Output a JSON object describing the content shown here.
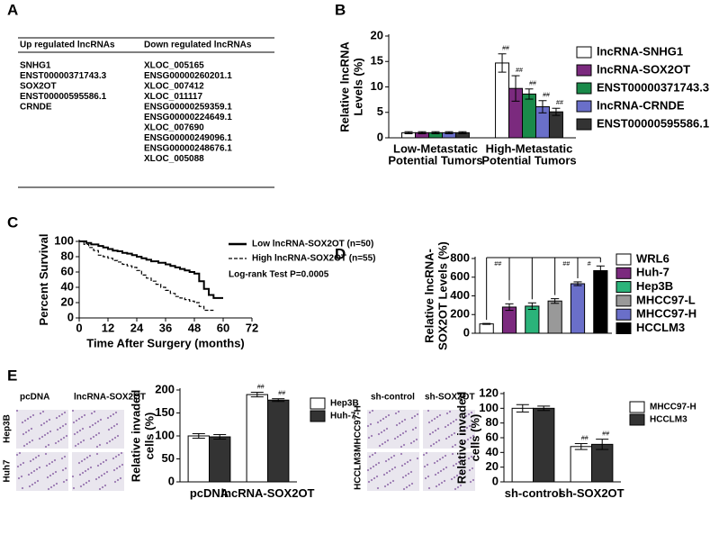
{
  "panels": [
    "A",
    "B",
    "C",
    "D",
    "E"
  ],
  "table": {
    "headers": [
      "Up regulated lncRNAs",
      "Down regulated lncRNAs"
    ],
    "columns": [
      [
        "SNHG1",
        "ENST00000371743.3",
        "SOX2OT",
        "ENST00000595586.1",
        "CRNDE"
      ],
      [
        "XLOC_005165",
        "ENSG00000260201.1",
        "XLOC_007412",
        "XLOC_011117",
        "ENSG00000259359.1",
        "ENSG00000224649.1",
        "XLOC_007690",
        "ENSG00000249096.1",
        "ENSG00000248676.1",
        "XLOC_005088"
      ]
    ]
  },
  "images": [
    {
      "columns": [
        "pcDNA",
        "lncRNA-SOX2OT"
      ],
      "rows": [
        "Hep3B",
        "Huh7"
      ]
    },
    {
      "columns": [
        "sh-control",
        "sh-SOX2OT"
      ],
      "rows": [
        "MHCC97-H",
        "HCCLM3"
      ]
    }
  ],
  "chart_data": [
    {
      "type": "bar",
      "ylabel": "Relative lncRNA\nLevels (%)",
      "categories": [
        "Low-Metastatic\nPotential Tumors",
        "High-Metastatic\nPotential Tumors"
      ],
      "series": [
        {
          "name": "lncRNA-SNHG1",
          "color": "#ffffff",
          "values": [
            1.0,
            14.7
          ],
          "errors": [
            0.2,
            1.8
          ],
          "marks": [
            null,
            "##"
          ]
        },
        {
          "name": "lncRNA-SOX2OT",
          "color": "#7b2a7e",
          "values": [
            1.0,
            9.7
          ],
          "errors": [
            0.2,
            2.5
          ],
          "marks": [
            null,
            "##"
          ]
        },
        {
          "name": "ENST00000371743.3",
          "color": "#1a8a4a",
          "values": [
            1.0,
            8.6
          ],
          "errors": [
            0.2,
            1.0
          ],
          "marks": [
            null,
            "##"
          ]
        },
        {
          "name": "lncRNA-CRNDE",
          "color": "#6a6fc9",
          "values": [
            1.0,
            6.1
          ],
          "errors": [
            0.2,
            1.2
          ],
          "marks": [
            null,
            "##"
          ]
        },
        {
          "name": "ENST00000595586.1",
          "color": "#333333",
          "values": [
            1.0,
            5.1
          ],
          "errors": [
            0.2,
            0.7
          ],
          "marks": [
            null,
            "##"
          ]
        }
      ],
      "ylim": [
        0,
        20
      ],
      "yticks": [
        0,
        5,
        10,
        15,
        20
      ]
    },
    {
      "type": "line",
      "ylabel": "Percent Survival",
      "xlabel": "Time After Surgery (months)",
      "annotation": "Log-rank Test P=0.0005",
      "series": [
        {
          "name": "Low lncRNA-SOX2OT (n=50)",
          "color": "#000000",
          "style": "solid",
          "x": [
            0,
            3,
            5,
            8,
            10,
            12,
            14,
            16,
            18,
            20,
            22,
            24,
            26,
            28,
            30,
            33,
            36,
            38,
            40,
            42,
            44,
            46,
            48,
            50,
            52,
            54,
            56,
            58,
            60
          ],
          "values": [
            100,
            98,
            96,
            94,
            92,
            90,
            88,
            87,
            85,
            84,
            82,
            80,
            78,
            76,
            74,
            72,
            70,
            68,
            66,
            64,
            62,
            60,
            58,
            48,
            38,
            30,
            26,
            26,
            26
          ]
        },
        {
          "name": "High lncRNA-SOX2OT (n=55)",
          "color": "#000000",
          "style": "dashed",
          "x": [
            0,
            2,
            4,
            6,
            8,
            10,
            12,
            14,
            16,
            18,
            20,
            22,
            24,
            26,
            28,
            30,
            32,
            34,
            36,
            38,
            40,
            42,
            44,
            46,
            48,
            50,
            52,
            56
          ],
          "values": [
            100,
            96,
            92,
            88,
            82,
            80,
            78,
            75,
            73,
            70,
            68,
            66,
            62,
            56,
            52,
            48,
            44,
            40,
            36,
            32,
            28,
            26,
            24,
            22,
            20,
            15,
            10,
            10
          ]
        }
      ],
      "xlim": [
        0,
        72
      ],
      "xticks": [
        0,
        12,
        24,
        36,
        48,
        60,
        72
      ],
      "ylim": [
        0,
        100
      ],
      "yticks": [
        0,
        20,
        40,
        60,
        80,
        100
      ]
    },
    {
      "type": "bar",
      "ylabel": "Relative lncRNA-\nSOX2OT Levels (%)",
      "categories": [
        "WRL6",
        "Huh-7",
        "Hep3B",
        "MHCC97-L",
        "MHCC97-H",
        "HCCLM3"
      ],
      "values": [
        100,
        280,
        290,
        345,
        530,
        670
      ],
      "errors": [
        5,
        35,
        35,
        25,
        20,
        50
      ],
      "colors": [
        "#ffffff",
        "#7b2a7e",
        "#2bb37a",
        "#999999",
        "#6a6fc9",
        "#000000"
      ],
      "brackets": [
        "##",
        "##",
        "#"
      ],
      "ylim": [
        0,
        800
      ],
      "yticks": [
        0,
        200,
        400,
        600,
        800
      ]
    },
    {
      "type": "bar",
      "ylabel": "Relative invaded\ncells (%)",
      "categories": [
        "pcDNA",
        "lncRNA-SOX2OT"
      ],
      "series": [
        {
          "name": "Hep3B",
          "color": "#ffffff",
          "values": [
            100,
            190
          ],
          "errors": [
            5,
            5
          ],
          "marks": [
            null,
            "##"
          ]
        },
        {
          "name": "Huh-7",
          "color": "#333333",
          "values": [
            98,
            178
          ],
          "errors": [
            5,
            3
          ],
          "marks": [
            null,
            "##"
          ]
        }
      ],
      "ylim": [
        0,
        200
      ],
      "yticks": [
        0,
        50,
        100,
        150,
        200
      ]
    },
    {
      "type": "bar",
      "ylabel": "Relative invaded\ncells (%)",
      "categories": [
        "sh-control",
        "sh-SOX2OT"
      ],
      "series": [
        {
          "name": "MHCC97-H",
          "color": "#ffffff",
          "values": [
            100,
            48
          ],
          "errors": [
            5,
            4
          ],
          "marks": [
            null,
            "##"
          ]
        },
        {
          "name": "HCCLM3",
          "color": "#333333",
          "values": [
            100,
            51
          ],
          "errors": [
            3,
            7
          ],
          "marks": [
            null,
            "##"
          ]
        }
      ],
      "ylim": [
        0,
        120
      ],
      "yticks": [
        0,
        20,
        40,
        60,
        80,
        100,
        120
      ]
    }
  ]
}
